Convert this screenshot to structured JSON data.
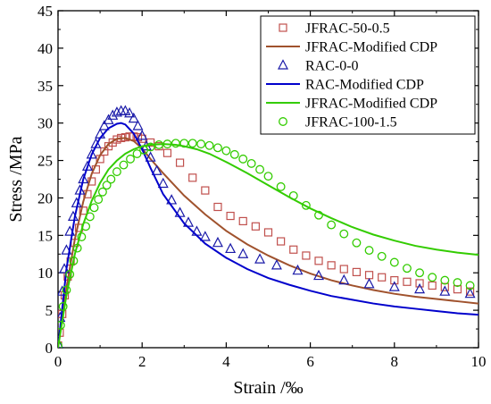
{
  "chart_data": {
    "type": "scatter",
    "xlabel": "Strain /‰",
    "ylabel": "Stress /MPa",
    "xlim": [
      0,
      10
    ],
    "ylim": [
      0,
      45
    ],
    "x_ticks": [
      0,
      2,
      4,
      6,
      8,
      10
    ],
    "y_ticks": [
      0,
      5,
      10,
      15,
      20,
      25,
      30,
      35,
      40,
      45
    ],
    "x_tick_labels": [
      "0",
      "2",
      "4",
      "6",
      "8",
      "10"
    ],
    "y_tick_labels": [
      "0",
      "5",
      "10",
      "15",
      "20",
      "25",
      "30",
      "35",
      "40",
      "45"
    ],
    "grid": false,
    "legend_position": "top-right",
    "series": [
      {
        "name": "JFRAC-50-0.5",
        "kind": "markers",
        "marker": "square",
        "color": "#c0504d",
        "x": [
          0.0,
          0.04,
          0.1,
          0.16,
          0.23,
          0.3,
          0.4,
          0.5,
          0.6,
          0.7,
          0.8,
          0.9,
          1.0,
          1.1,
          1.2,
          1.3,
          1.4,
          1.5,
          1.6,
          1.7,
          1.8,
          1.9,
          2.0,
          2.2,
          2.4,
          2.6,
          2.9,
          3.2,
          3.5,
          3.8,
          4.1,
          4.4,
          4.7,
          5.0,
          5.3,
          5.6,
          5.9,
          6.2,
          6.5,
          6.8,
          7.1,
          7.4,
          7.7,
          8.0,
          8.3,
          8.6,
          8.9,
          9.2,
          9.5,
          9.8
        ],
        "y": [
          0.3,
          2.0,
          4.5,
          7.0,
          9.5,
          11.5,
          14.0,
          16.0,
          18.3,
          20.5,
          22.2,
          23.8,
          25.2,
          26.2,
          26.9,
          27.4,
          27.8,
          28.0,
          28.1,
          28.2,
          28.2,
          28.1,
          27.9,
          27.4,
          26.9,
          26.0,
          24.7,
          22.7,
          21.0,
          18.8,
          17.6,
          16.9,
          16.2,
          15.4,
          14.2,
          13.1,
          12.3,
          11.6,
          11.0,
          10.5,
          10.1,
          9.7,
          9.4,
          9.0,
          8.8,
          8.6,
          8.3,
          8.1,
          7.8,
          7.5
        ]
      },
      {
        "name": "JFRAC-Modified CDP",
        "kind": "line",
        "color": "#a0522d",
        "x": [
          0.0,
          0.2,
          0.4,
          0.6,
          0.8,
          1.0,
          1.2,
          1.4,
          1.6,
          1.8,
          2.0,
          2.2,
          2.5,
          3.0,
          3.5,
          4.0,
          4.5,
          5.0,
          5.5,
          6.0,
          6.5,
          7.0,
          7.5,
          8.0,
          8.5,
          9.0,
          9.5,
          10.0
        ],
        "y": [
          0.0,
          8.0,
          14.5,
          19.5,
          23.2,
          25.7,
          27.2,
          27.9,
          28.0,
          27.6,
          26.6,
          25.2,
          23.3,
          20.3,
          17.8,
          15.6,
          13.8,
          12.3,
          11.0,
          9.9,
          9.0,
          8.3,
          7.7,
          7.2,
          6.8,
          6.5,
          6.2,
          5.9
        ]
      },
      {
        "name": "RAC-0-0",
        "kind": "markers",
        "marker": "triangle",
        "color": "#1a1aa8",
        "x": [
          0.0,
          0.05,
          0.1,
          0.15,
          0.2,
          0.28,
          0.36,
          0.44,
          0.52,
          0.6,
          0.7,
          0.8,
          0.9,
          1.0,
          1.1,
          1.2,
          1.3,
          1.4,
          1.5,
          1.6,
          1.7,
          1.8,
          1.9,
          2.0,
          2.1,
          2.2,
          2.35,
          2.5,
          2.7,
          2.9,
          3.1,
          3.3,
          3.5,
          3.8,
          4.1,
          4.4,
          4.8,
          5.2,
          5.7,
          6.2,
          6.8,
          7.4,
          8.0,
          8.6,
          9.2,
          9.8
        ],
        "y": [
          0.5,
          4.0,
          7.5,
          10.5,
          13.0,
          15.5,
          17.5,
          19.3,
          21.0,
          22.5,
          24.2,
          25.8,
          27.2,
          28.5,
          29.6,
          30.4,
          31.0,
          31.4,
          31.6,
          31.6,
          31.3,
          30.6,
          29.6,
          28.3,
          26.9,
          25.4,
          23.6,
          21.9,
          19.7,
          18.0,
          16.7,
          15.5,
          14.8,
          14.0,
          13.2,
          12.5,
          11.8,
          11.0,
          10.3,
          9.6,
          9.0,
          8.5,
          8.1,
          7.8,
          7.5,
          7.2
        ]
      },
      {
        "name": "RAC-Modified CDP",
        "kind": "line",
        "color": "#0000cc",
        "x": [
          0.0,
          0.2,
          0.4,
          0.6,
          0.8,
          1.0,
          1.2,
          1.4,
          1.5,
          1.6,
          1.8,
          2.0,
          2.2,
          2.5,
          3.0,
          3.5,
          4.0,
          4.5,
          5.0,
          5.5,
          6.0,
          6.5,
          7.0,
          7.5,
          8.0,
          8.5,
          9.0,
          9.5,
          10.0
        ],
        "y": [
          0.0,
          10.5,
          17.5,
          22.5,
          25.8,
          28.0,
          29.3,
          29.9,
          30.0,
          29.8,
          28.6,
          26.5,
          24.0,
          20.5,
          16.6,
          13.9,
          12.0,
          10.5,
          9.3,
          8.4,
          7.6,
          6.9,
          6.4,
          5.9,
          5.5,
          5.2,
          4.9,
          4.6,
          4.4
        ]
      },
      {
        "name": "JFRAC-Modified CDP",
        "kind": "line",
        "color": "#33cc00",
        "x": [
          0.0,
          0.2,
          0.4,
          0.6,
          0.8,
          1.0,
          1.2,
          1.4,
          1.6,
          1.8,
          2.0,
          2.2,
          2.5,
          2.8,
          3.0,
          3.3,
          3.6,
          4.0,
          4.5,
          5.0,
          5.5,
          6.0,
          6.5,
          7.0,
          7.5,
          8.0,
          8.5,
          9.0,
          9.5,
          10.0
        ],
        "y": [
          0.0,
          7.0,
          12.5,
          16.5,
          19.6,
          22.0,
          23.8,
          25.0,
          25.9,
          26.5,
          26.9,
          27.1,
          27.2,
          27.1,
          26.9,
          26.5,
          25.9,
          24.8,
          23.3,
          21.7,
          20.1,
          18.6,
          17.3,
          16.1,
          15.1,
          14.3,
          13.6,
          13.1,
          12.7,
          12.4
        ]
      },
      {
        "name": "JFRAC-100-1.5",
        "kind": "markers",
        "marker": "circle",
        "color": "#33cc00",
        "x": [
          0.0,
          0.06,
          0.12,
          0.2,
          0.28,
          0.37,
          0.46,
          0.56,
          0.66,
          0.76,
          0.86,
          0.96,
          1.06,
          1.16,
          1.26,
          1.4,
          1.56,
          1.72,
          1.88,
          2.04,
          2.2,
          2.4,
          2.6,
          2.8,
          3.0,
          3.2,
          3.4,
          3.6,
          3.8,
          4.0,
          4.2,
          4.4,
          4.6,
          4.8,
          5.0,
          5.3,
          5.6,
          5.9,
          6.2,
          6.5,
          6.8,
          7.1,
          7.4,
          7.7,
          8.0,
          8.3,
          8.6,
          8.9,
          9.2,
          9.5,
          9.8
        ],
        "y": [
          0.3,
          3.0,
          5.5,
          7.7,
          9.8,
          11.6,
          13.3,
          14.8,
          16.2,
          17.5,
          18.7,
          19.8,
          20.8,
          21.7,
          22.5,
          23.5,
          24.4,
          25.2,
          25.9,
          26.4,
          26.8,
          27.1,
          27.2,
          27.3,
          27.3,
          27.3,
          27.2,
          27.0,
          26.7,
          26.3,
          25.8,
          25.2,
          24.6,
          23.8,
          22.9,
          21.5,
          20.3,
          19.0,
          17.7,
          16.4,
          15.2,
          14.0,
          13.0,
          12.2,
          11.4,
          10.6,
          10.0,
          9.4,
          9.0,
          8.7,
          8.3
        ]
      }
    ]
  }
}
